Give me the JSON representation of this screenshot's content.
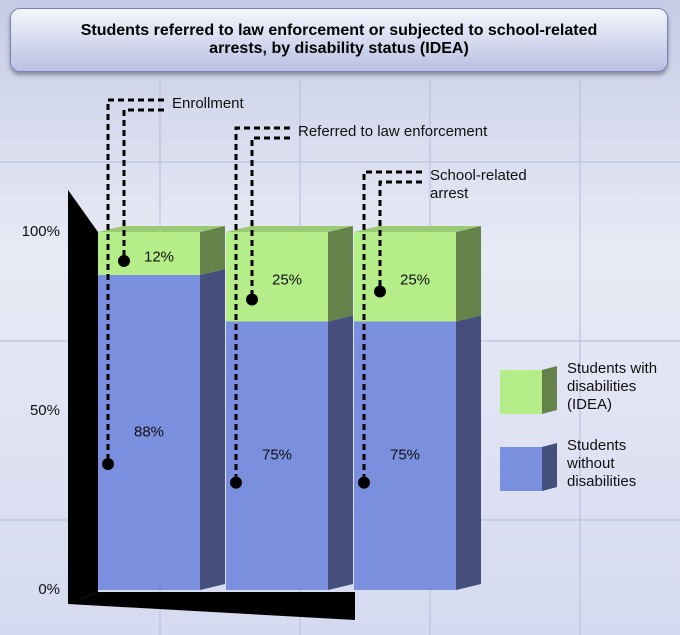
{
  "chart_data": {
    "type": "bar",
    "stacked": true,
    "title": "Students referred to law enforcement or subjected to school-related arrests, by disability status (IDEA)",
    "categories": [
      "Enrollment",
      "Referred to law enforcement",
      "School-related arrest"
    ],
    "series": [
      {
        "name": "Students without disabilities",
        "color": "#7b8fdf",
        "values": [
          88,
          75,
          75
        ],
        "value_labels": [
          "88%",
          "75%",
          "75%"
        ]
      },
      {
        "name": "Students with disabilities (IDEA)",
        "color": "#b5ee88",
        "values": [
          12,
          25,
          25
        ],
        "value_labels": [
          "12%",
          "25%",
          "25%"
        ]
      }
    ],
    "ylim": [
      0,
      100
    ],
    "yticks": [
      {
        "value": 0,
        "label": "0%"
      },
      {
        "value": 50,
        "label": "50%"
      },
      {
        "value": 100,
        "label": "100%"
      }
    ],
    "grid": true
  }
}
